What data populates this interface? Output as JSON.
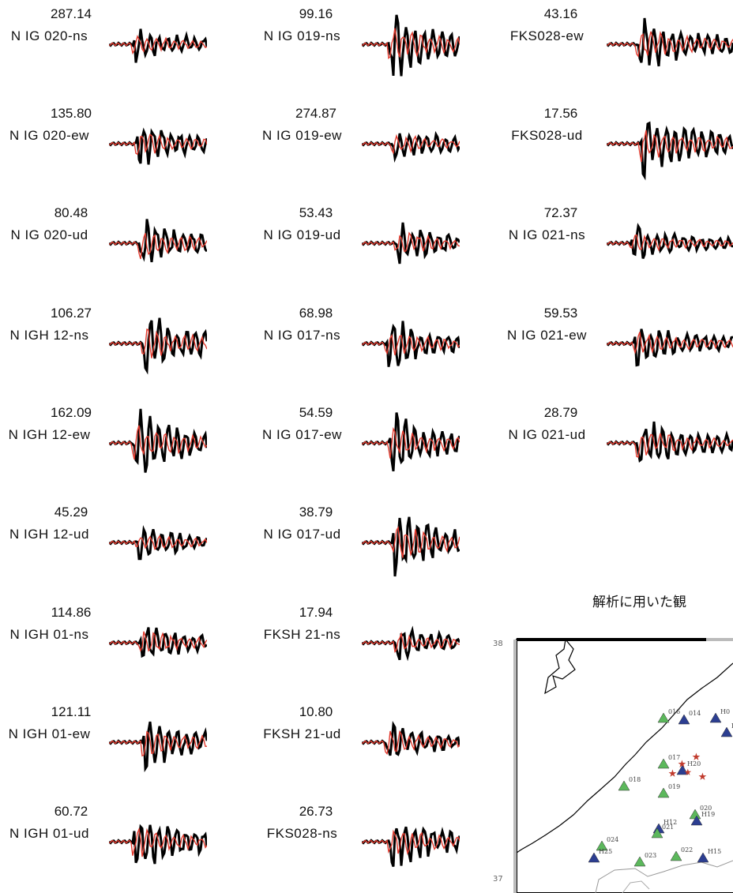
{
  "panels": [
    {
      "value": "287.14",
      "name": "N IG 020-ns"
    },
    {
      "value": "135.80",
      "name": "N IG 020-ew"
    },
    {
      "value": "80.48",
      "name": "N IG 020-ud"
    },
    {
      "value": "106.27",
      "name": "N IGH 12-ns"
    },
    {
      "value": "162.09",
      "name": "N IGH 12-ew"
    },
    {
      "value": "45.29",
      "name": "N IGH 12-ud"
    },
    {
      "value": "114.86",
      "name": "N IGH 01-ns"
    },
    {
      "value": "121.11",
      "name": "N IGH 01-ew"
    },
    {
      "value": "60.72",
      "name": "N IGH 01-ud"
    },
    {
      "value": "99.16",
      "name": "N IG 019-ns"
    },
    {
      "value": "274.87",
      "name": "N IG 019-ew"
    },
    {
      "value": "53.43",
      "name": "N IG 019-ud"
    },
    {
      "value": "68.98",
      "name": "N IG 017-ns"
    },
    {
      "value": "54.59",
      "name": "N IG 017-ew"
    },
    {
      "value": "38.79",
      "name": "N IG 017-ud"
    },
    {
      "value": "17.94",
      "name": "FKSH 21-ns"
    },
    {
      "value": "10.80",
      "name": "FKSH 21-ud"
    },
    {
      "value": "26.73",
      "name": "FKS028-ns"
    },
    {
      "value": "43.16",
      "name": "FKS028-ew"
    },
    {
      "value": "17.56",
      "name": "FKS028-ud"
    },
    {
      "value": "72.37",
      "name": "N IG 021-ns"
    },
    {
      "value": "59.53",
      "name": "N IG 021-ew"
    },
    {
      "value": "28.79",
      "name": "N IG 021-ud"
    }
  ],
  "map": {
    "title": "解析に用いた観",
    "lat_top": "38",
    "lat_bottom": "37",
    "stations": [
      {
        "label": "016",
        "type": "green"
      },
      {
        "label": "014",
        "type": "blue"
      },
      {
        "label": "H0",
        "type": "blue"
      },
      {
        "label": "H0",
        "type": "blue"
      },
      {
        "label": "017",
        "type": "green"
      },
      {
        "label": "H20",
        "type": "blue"
      },
      {
        "label": "018",
        "type": "green"
      },
      {
        "label": "019",
        "type": "green"
      },
      {
        "label": "H12",
        "type": "blue"
      },
      {
        "label": "021",
        "type": "green"
      },
      {
        "label": "020",
        "type": "green"
      },
      {
        "label": "H19",
        "type": "blue"
      },
      {
        "label": "024",
        "type": "green"
      },
      {
        "label": "H25",
        "type": "blue"
      },
      {
        "label": "023",
        "type": "green"
      },
      {
        "label": "022",
        "type": "green"
      },
      {
        "label": "H15",
        "type": "blue"
      }
    ],
    "colors": {
      "green": "#5cb85c",
      "blue": "#2c3e91",
      "star": "#c0392b",
      "synthetic": "#e23a2e",
      "observed": "#000000"
    }
  }
}
